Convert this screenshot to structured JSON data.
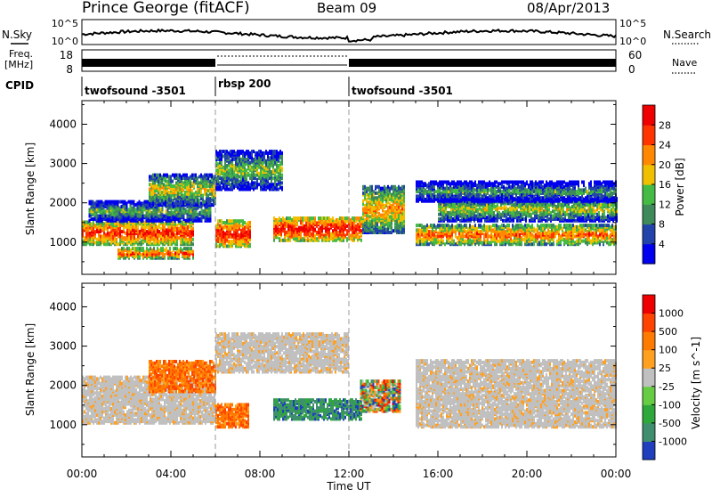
{
  "header": {
    "radar": "Prince George (fitACF)",
    "beam": "Beam 09",
    "date": "08/Apr/2013"
  },
  "top_panels": {
    "nsky_label": "N.Sky",
    "nsearch_label": "N.Search",
    "noise_ticks": [
      "10^5",
      "10^0"
    ],
    "freq_label_1": "Freq.",
    "freq_label_2": "[MHz]",
    "freq_ticks": [
      "18",
      "8"
    ],
    "nave_label": "Nave",
    "nave_ticks": [
      "60",
      "0"
    ],
    "cpid_label": "CPID",
    "cpid_segments": [
      {
        "name": "twofsound -3501",
        "start_hour": 0,
        "end_hour": 6
      },
      {
        "name": "rbsp 200",
        "start_hour": 6,
        "end_hour": 12
      },
      {
        "name": "twofsound -3501",
        "start_hour": 12,
        "end_hour": 24
      }
    ]
  },
  "chart_data": [
    {
      "type": "heatmap",
      "title": "",
      "xlabel": "Time UT",
      "ylabel": "Slant Range [km]",
      "x_ticks": [
        "00:00",
        "04:00",
        "08:00",
        "12:00",
        "16:00",
        "20:00",
        "00:00"
      ],
      "xlim_hours": [
        0,
        24
      ],
      "y_ticks": [
        1000,
        2000,
        3000,
        4000
      ],
      "ylim": [
        180,
        4600
      ],
      "colorbar": {
        "label": "Power [dB]",
        "ticks": [
          4,
          8,
          12,
          16,
          20,
          24,
          28
        ],
        "colors": [
          "#0000ee",
          "#2244aa",
          "#3e8a5a",
          "#44bb44",
          "#f0c000",
          "#ff8800",
          "#ff3300",
          "#ee0000"
        ]
      },
      "features": [
        {
          "desc": "band",
          "t0": 0.0,
          "t1": 5.0,
          "r0": 900,
          "r1": 1500,
          "level": 0.9
        },
        {
          "desc": "band",
          "t0": 0.3,
          "t1": 5.8,
          "r0": 1500,
          "r1": 2000,
          "level": 0.45
        },
        {
          "desc": "band",
          "t0": 3.0,
          "t1": 6.0,
          "r0": 1900,
          "r1": 2700,
          "level": 0.6
        },
        {
          "desc": "band",
          "t0": 6.0,
          "t1": 7.6,
          "r0": 850,
          "r1": 1500,
          "level": 0.95
        },
        {
          "desc": "band",
          "t0": 6.0,
          "t1": 9.0,
          "r0": 2300,
          "r1": 3300,
          "level": 0.5
        },
        {
          "desc": "band",
          "t0": 8.6,
          "t1": 12.6,
          "r0": 1000,
          "r1": 1600,
          "level": 0.95
        },
        {
          "desc": "band",
          "t0": 12.6,
          "t1": 14.5,
          "r0": 1200,
          "r1": 2400,
          "level": 0.7
        },
        {
          "desc": "band",
          "t0": 15.0,
          "t1": 24.0,
          "r0": 900,
          "r1": 1400,
          "level": 0.8
        },
        {
          "desc": "band",
          "t0": 16.0,
          "t1": 24.0,
          "r0": 1500,
          "r1": 2100,
          "level": 0.55
        },
        {
          "desc": "band",
          "t0": 15.0,
          "t1": 24.0,
          "r0": 2000,
          "r1": 2500,
          "level": 0.4
        },
        {
          "desc": "band",
          "t0": 1.6,
          "t1": 5.0,
          "r0": 550,
          "r1": 800,
          "level": 0.85
        }
      ]
    },
    {
      "type": "heatmap",
      "title": "",
      "xlabel": "Time UT",
      "ylabel": "Slant Range [km]",
      "x_ticks": [
        "00:00",
        "04:00",
        "08:00",
        "12:00",
        "16:00",
        "20:00",
        "00:00"
      ],
      "xlim_hours": [
        0,
        24
      ],
      "y_ticks": [
        1000,
        2000,
        3000,
        4000
      ],
      "ylim": [
        180,
        4600
      ],
      "colorbar": {
        "label": "Velocity [m s^-1]",
        "ticks": [
          1000,
          500,
          100,
          25,
          -25,
          -100,
          -500,
          -1000
        ],
        "colors": [
          "#1f3fbf",
          "#3f8f6f",
          "#2ea83a",
          "#66cc44",
          "#c0c0c0",
          "#ffa020",
          "#ff7a00",
          "#ff4400",
          "#ee0000"
        ]
      },
      "features": [
        {
          "desc": "ground",
          "t0": 0.0,
          "t1": 6.0,
          "r0": 1000,
          "r1": 2200,
          "level": 0.5
        },
        {
          "desc": "ground",
          "t0": 15.0,
          "t1": 24.0,
          "r0": 900,
          "r1": 2600,
          "level": 0.5
        },
        {
          "desc": "ground",
          "t0": 6.0,
          "t1": 12.0,
          "r0": 2300,
          "r1": 3300,
          "level": 0.5
        },
        {
          "desc": "neg",
          "t0": 3.0,
          "t1": 6.0,
          "r0": 1800,
          "r1": 2600,
          "level": 0.8
        },
        {
          "desc": "neg",
          "t0": 6.0,
          "t1": 7.5,
          "r0": 900,
          "r1": 1500,
          "level": 0.9
        },
        {
          "desc": "pos",
          "t0": 8.6,
          "t1": 12.6,
          "r0": 1100,
          "r1": 1600,
          "level": 0.85
        },
        {
          "desc": "mix",
          "t0": 12.5,
          "t1": 14.3,
          "r0": 1300,
          "r1": 2100,
          "level": 0.7
        }
      ]
    }
  ]
}
